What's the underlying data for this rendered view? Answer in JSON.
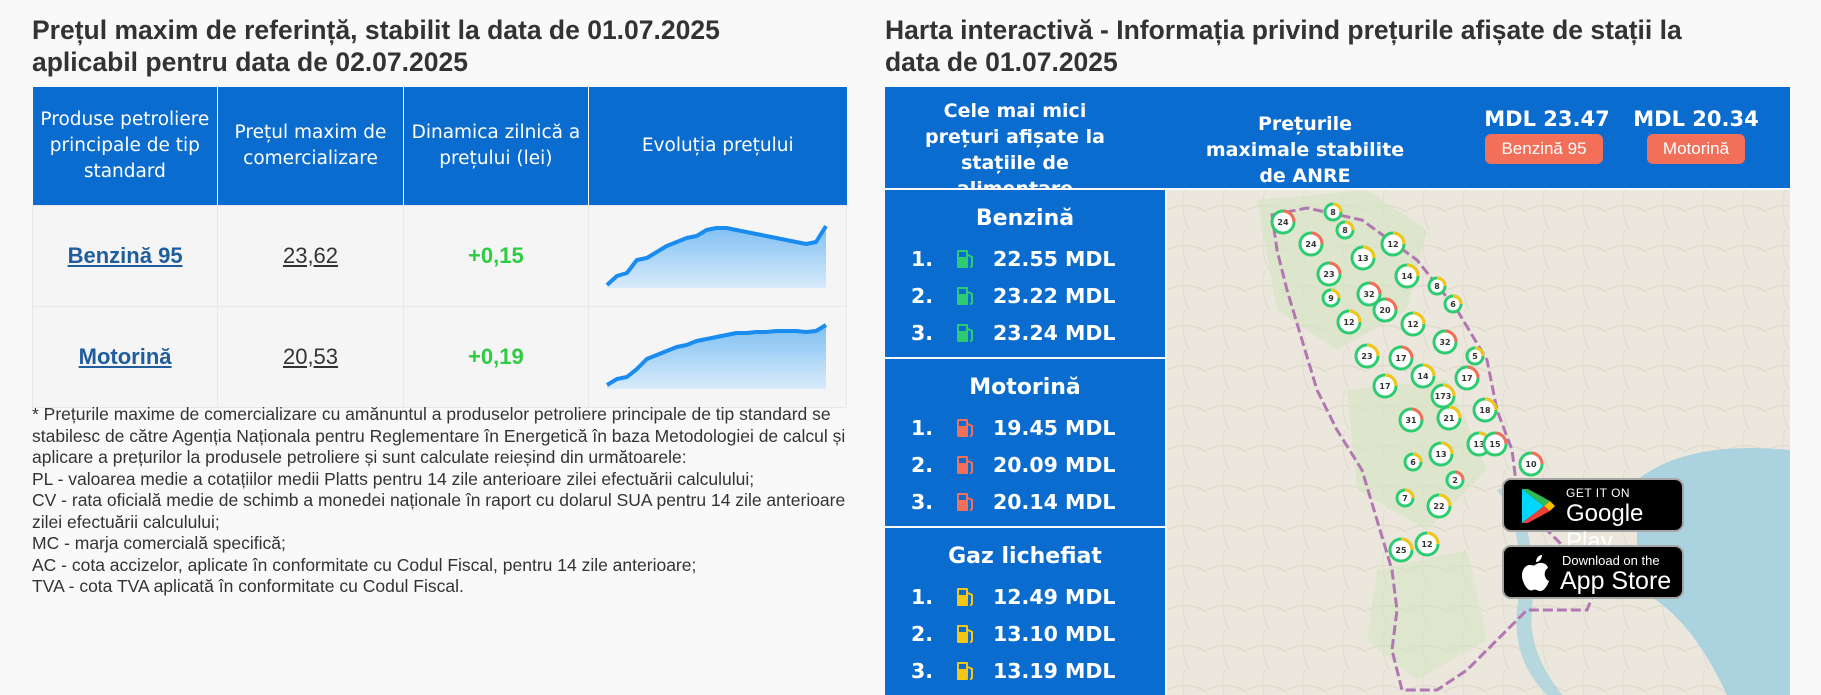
{
  "left": {
    "title_line1": "Prețul maxim de referință, stabilit la data de 01.07.2025",
    "title_line2": "aplicabil pentru data de 02.07.2025",
    "headers": [
      "Produse petroliere principale de tip standard",
      "Prețul maxim de comercializare",
      "Dinamica zilnică a prețului (lei)",
      "Evoluția prețului"
    ],
    "rows": [
      {
        "product": "Benzină 95",
        "price": "23,62",
        "delta": "+0,15",
        "trend": [
          3,
          12,
          15,
          28,
          30,
          36,
          42,
          46,
          50,
          52,
          58,
          60,
          60,
          58,
          56,
          54,
          52,
          50,
          48,
          46,
          44,
          46,
          62
        ]
      },
      {
        "product": "Motorină",
        "price": "20,53",
        "delta": "+0,19",
        "trend": [
          4,
          10,
          12,
          20,
          30,
          34,
          38,
          42,
          44,
          48,
          50,
          52,
          54,
          56,
          56,
          57,
          57,
          58,
          58,
          58,
          57,
          58,
          64
        ]
      }
    ],
    "notes": [
      "* Prețurile maxime de comercializare cu amănuntul a produselor petroliere principale de tip standard se stabilesc de către Agenția Naționala pentru Reglementare în Energetică în baza Metodologiei de calcul și aplicare a prețurilor la produsele petroliere și sunt calculate reieșind din următoarele:",
      "PL - valoarea medie a cotațiilor medii Platts pentru 14 zile anterioare zilei efectuării calculului;",
      "CV - rata oficială medie de schimb a monedei naționale în raport cu dolarul SUA pentru 14 zile anterioare zilei efectuării calculului;",
      "MC - marja comercială specifică;",
      "AC - cota accizelor, aplicate în conformitate cu Codul Fiscal, pentru 14 zile anterioare;",
      "TVA - cota TVA aplicată în conformitate cu Codul Fiscal."
    ]
  },
  "right": {
    "title_line1": "Harta interactivă - Informația privind prețurile afișate de stații la",
    "title_line2": "data de 01.07.2025",
    "lowest_label": "Cele mai mici prețuri afișate la stațiile de alimentare",
    "max_label": "Prețurile maximale stabilite de ANRE",
    "max_prices": [
      {
        "value": "MDL 23.47",
        "badge": "Benzină 95"
      },
      {
        "value": "MDL 20.34",
        "badge": "Motorină"
      }
    ],
    "panels": [
      {
        "title": "Benzină",
        "color": "#2ecc71",
        "items": [
          {
            "rank": "1.",
            "value": "22.55 MDL"
          },
          {
            "rank": "2.",
            "value": "23.22 MDL"
          },
          {
            "rank": "3.",
            "value": "23.24 MDL"
          }
        ]
      },
      {
        "title": "Motorină",
        "color": "#f26f5a",
        "items": [
          {
            "rank": "1.",
            "value": "19.45 MDL"
          },
          {
            "rank": "2.",
            "value": "20.09 MDL"
          },
          {
            "rank": "3.",
            "value": "20.14 MDL"
          }
        ]
      },
      {
        "title": "Gaz lichefiat",
        "color": "#f5c518",
        "items": [
          {
            "rank": "1.",
            "value": "12.49 MDL"
          },
          {
            "rank": "2.",
            "value": "13.10 MDL"
          },
          {
            "rank": "3.",
            "value": "13.19 MDL"
          }
        ]
      }
    ],
    "map_markers": [
      "24",
      "8",
      "8",
      "24",
      "13",
      "12",
      "23",
      "14",
      "9",
      "32",
      "8",
      "6",
      "20",
      "12",
      "12",
      "32",
      "5",
      "23",
      "17",
      "17",
      "14",
      "17",
      "173",
      "18",
      "31",
      "21",
      "13",
      "15",
      "6",
      "13",
      "10",
      "7",
      "22",
      "2",
      "25",
      "12"
    ],
    "google_play": {
      "small": "GET IT ON",
      "big": "Google Play"
    },
    "app_store": {
      "small": "Download on the",
      "big": "App Store"
    }
  }
}
